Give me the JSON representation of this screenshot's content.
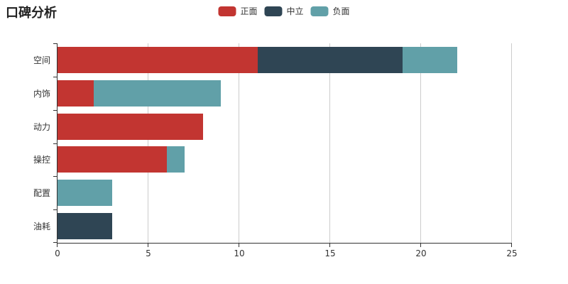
{
  "title": "口碑分析",
  "legend": {
    "items": [
      "正面",
      "中立",
      "负面"
    ]
  },
  "chart_data": {
    "type": "bar",
    "orientation": "horizontal",
    "stacked": true,
    "title": "口碑分析",
    "categories": [
      "空间",
      "内饰",
      "动力",
      "操控",
      "配置",
      "油耗"
    ],
    "series": [
      {
        "name": "正面",
        "color": "#c23531",
        "values": [
          11,
          2,
          8,
          6,
          0,
          0
        ]
      },
      {
        "name": "中立",
        "color": "#2f4554",
        "values": [
          8,
          0,
          0,
          0,
          0,
          3
        ]
      },
      {
        "name": "负面",
        "color": "#61a0a8",
        "values": [
          3,
          7,
          0,
          1,
          3,
          0
        ]
      }
    ],
    "totals": [
      22,
      9,
      8,
      7,
      3,
      3
    ],
    "xlim": [
      0,
      25
    ],
    "xticks": [
      0,
      5,
      10,
      15,
      20,
      25
    ],
    "grid": true,
    "legend_position": "top-center",
    "axis_color": "#333333",
    "gridline_color": "#cccccc",
    "background_color": "#ffffff"
  }
}
